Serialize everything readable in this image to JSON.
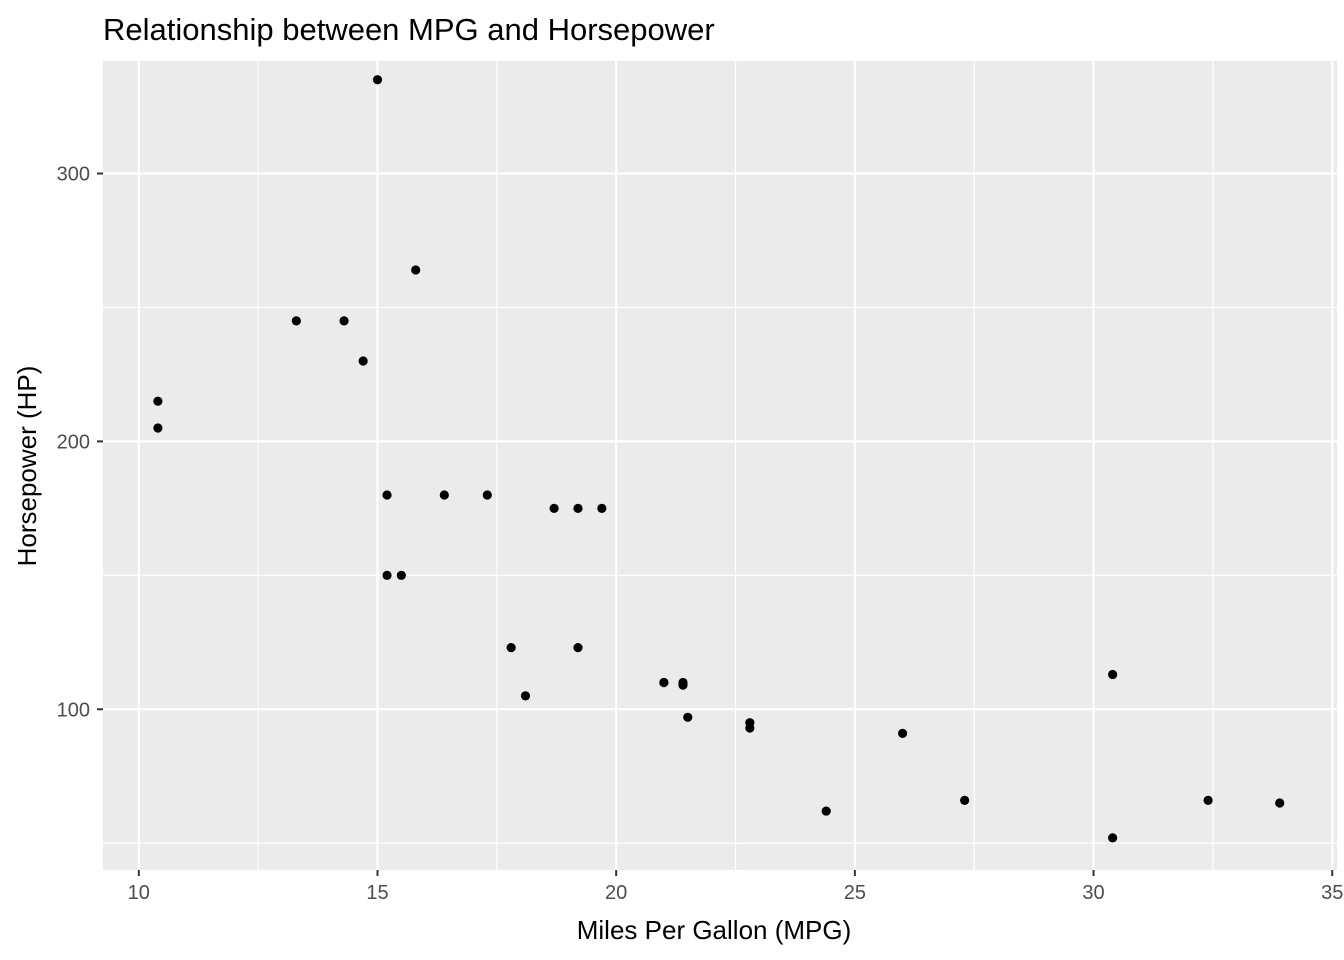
{
  "chart_data": {
    "type": "scatter",
    "title": "Relationship between MPG and Horsepower",
    "xlabel": "Miles Per Gallon (MPG)",
    "ylabel": "Horsepower (HP)",
    "xlim": [
      9.25,
      35.1
    ],
    "ylim": [
      40,
      342
    ],
    "x_ticks": [
      10,
      15,
      20,
      25,
      30,
      35
    ],
    "x_tick_labels": [
      "10",
      "15",
      "20",
      "25",
      "30",
      "35"
    ],
    "x_minor_ticks": [
      12.5,
      17.5,
      22.5,
      27.5,
      32.5
    ],
    "y_ticks": [
      100,
      200,
      300
    ],
    "y_tick_labels": [
      "100",
      "200",
      "300"
    ],
    "y_minor_ticks": [
      50,
      150,
      250
    ],
    "grid": true,
    "legend": "none",
    "colors": {
      "panel_background": "#EBEBEB",
      "grid": "#FFFFFF",
      "point": "#000000",
      "tick_mark": "#333333",
      "tick_label": "#4D4D4D"
    },
    "points": [
      {
        "x": 21.0,
        "y": 110
      },
      {
        "x": 21.0,
        "y": 110
      },
      {
        "x": 22.8,
        "y": 93
      },
      {
        "x": 21.4,
        "y": 110
      },
      {
        "x": 18.7,
        "y": 175
      },
      {
        "x": 18.1,
        "y": 105
      },
      {
        "x": 14.3,
        "y": 245
      },
      {
        "x": 24.4,
        "y": 62
      },
      {
        "x": 22.8,
        "y": 95
      },
      {
        "x": 19.2,
        "y": 123
      },
      {
        "x": 17.8,
        "y": 123
      },
      {
        "x": 16.4,
        "y": 180
      },
      {
        "x": 17.3,
        "y": 180
      },
      {
        "x": 15.2,
        "y": 180
      },
      {
        "x": 10.4,
        "y": 205
      },
      {
        "x": 10.4,
        "y": 215
      },
      {
        "x": 14.7,
        "y": 230
      },
      {
        "x": 32.4,
        "y": 66
      },
      {
        "x": 30.4,
        "y": 52
      },
      {
        "x": 33.9,
        "y": 65
      },
      {
        "x": 21.5,
        "y": 97
      },
      {
        "x": 15.5,
        "y": 150
      },
      {
        "x": 15.2,
        "y": 150
      },
      {
        "x": 13.3,
        "y": 245
      },
      {
        "x": 19.2,
        "y": 175
      },
      {
        "x": 27.3,
        "y": 66
      },
      {
        "x": 26.0,
        "y": 91
      },
      {
        "x": 30.4,
        "y": 113
      },
      {
        "x": 15.8,
        "y": 264
      },
      {
        "x": 19.7,
        "y": 175
      },
      {
        "x": 15.0,
        "y": 335
      },
      {
        "x": 21.4,
        "y": 109
      }
    ]
  }
}
